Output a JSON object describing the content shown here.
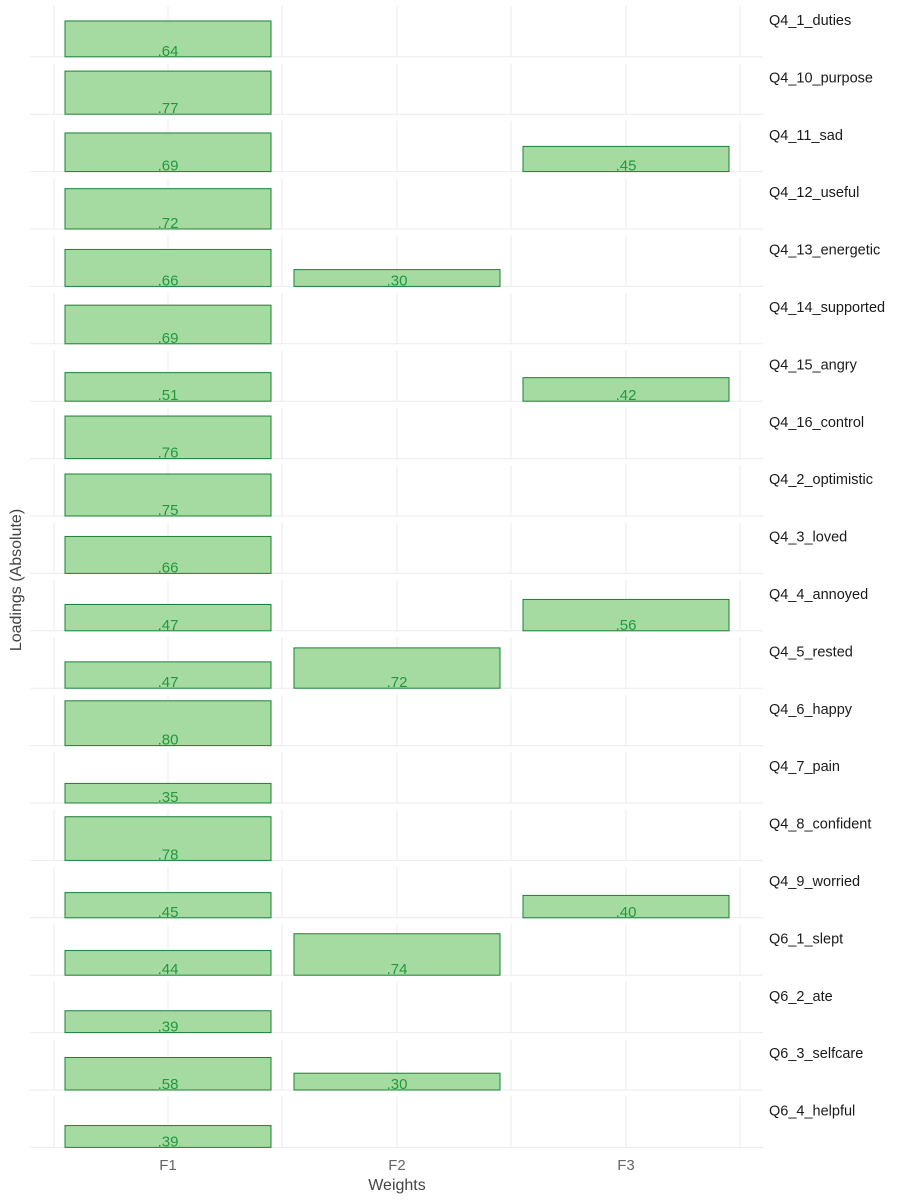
{
  "chart_data": {
    "type": "bar",
    "xlabel": "Weights",
    "ylabel": "Loadings (Absolute)",
    "categories": [
      "F1",
      "F2",
      "F3"
    ],
    "ylim": [
      0,
      0.8
    ],
    "grid": true,
    "colors": {
      "fill": "#a5dba0",
      "stroke": "#1a7f37",
      "label": "#1f9a3f"
    },
    "items": [
      {
        "name": "Q4_1_duties",
        "loadings": [
          {
            "factor": "F1",
            "value": 0.64,
            "label": ".64"
          }
        ]
      },
      {
        "name": "Q4_10_purpose",
        "loadings": [
          {
            "factor": "F1",
            "value": 0.77,
            "label": ".77"
          }
        ]
      },
      {
        "name": "Q4_11_sad",
        "loadings": [
          {
            "factor": "F1",
            "value": 0.69,
            "label": ".69"
          },
          {
            "factor": "F3",
            "value": 0.45,
            "label": ".45"
          }
        ]
      },
      {
        "name": "Q4_12_useful",
        "loadings": [
          {
            "factor": "F1",
            "value": 0.72,
            "label": ".72"
          }
        ]
      },
      {
        "name": "Q4_13_energetic",
        "loadings": [
          {
            "factor": "F1",
            "value": 0.66,
            "label": ".66"
          },
          {
            "factor": "F2",
            "value": 0.3,
            "label": ".30"
          }
        ]
      },
      {
        "name": "Q4_14_supported",
        "loadings": [
          {
            "factor": "F1",
            "value": 0.69,
            "label": ".69"
          }
        ]
      },
      {
        "name": "Q4_15_angry",
        "loadings": [
          {
            "factor": "F1",
            "value": 0.51,
            "label": ".51"
          },
          {
            "factor": "F3",
            "value": 0.42,
            "label": ".42"
          }
        ]
      },
      {
        "name": "Q4_16_control",
        "loadings": [
          {
            "factor": "F1",
            "value": 0.76,
            "label": ".76"
          }
        ]
      },
      {
        "name": "Q4_2_optimistic",
        "loadings": [
          {
            "factor": "F1",
            "value": 0.75,
            "label": ".75"
          }
        ]
      },
      {
        "name": "Q4_3_loved",
        "loadings": [
          {
            "factor": "F1",
            "value": 0.66,
            "label": ".66"
          }
        ]
      },
      {
        "name": "Q4_4_annoyed",
        "loadings": [
          {
            "factor": "F1",
            "value": 0.47,
            "label": ".47"
          },
          {
            "factor": "F3",
            "value": 0.56,
            "label": ".56"
          }
        ]
      },
      {
        "name": "Q4_5_rested",
        "loadings": [
          {
            "factor": "F1",
            "value": 0.47,
            "label": ".47"
          },
          {
            "factor": "F2",
            "value": 0.72,
            "label": ".72"
          }
        ]
      },
      {
        "name": "Q4_6_happy",
        "loadings": [
          {
            "factor": "F1",
            "value": 0.8,
            "label": ".80"
          }
        ]
      },
      {
        "name": "Q4_7_pain",
        "loadings": [
          {
            "factor": "F1",
            "value": 0.35,
            "label": ".35"
          }
        ]
      },
      {
        "name": "Q4_8_confident",
        "loadings": [
          {
            "factor": "F1",
            "value": 0.78,
            "label": ".78"
          }
        ]
      },
      {
        "name": "Q4_9_worried",
        "loadings": [
          {
            "factor": "F1",
            "value": 0.45,
            "label": ".45"
          },
          {
            "factor": "F3",
            "value": 0.4,
            "label": ".40"
          }
        ]
      },
      {
        "name": "Q6_1_slept",
        "loadings": [
          {
            "factor": "F1",
            "value": 0.44,
            "label": ".44"
          },
          {
            "factor": "F2",
            "value": 0.74,
            "label": ".74"
          }
        ]
      },
      {
        "name": "Q6_2_ate",
        "loadings": [
          {
            "factor": "F1",
            "value": 0.39,
            "label": ".39"
          }
        ]
      },
      {
        "name": "Q6_3_selfcare",
        "loadings": [
          {
            "factor": "F1",
            "value": 0.58,
            "label": ".58"
          },
          {
            "factor": "F2",
            "value": 0.3,
            "label": ".30"
          }
        ]
      },
      {
        "name": "Q6_4_helpful",
        "loadings": [
          {
            "factor": "F1",
            "value": 0.39,
            "label": ".39"
          }
        ]
      }
    ]
  }
}
